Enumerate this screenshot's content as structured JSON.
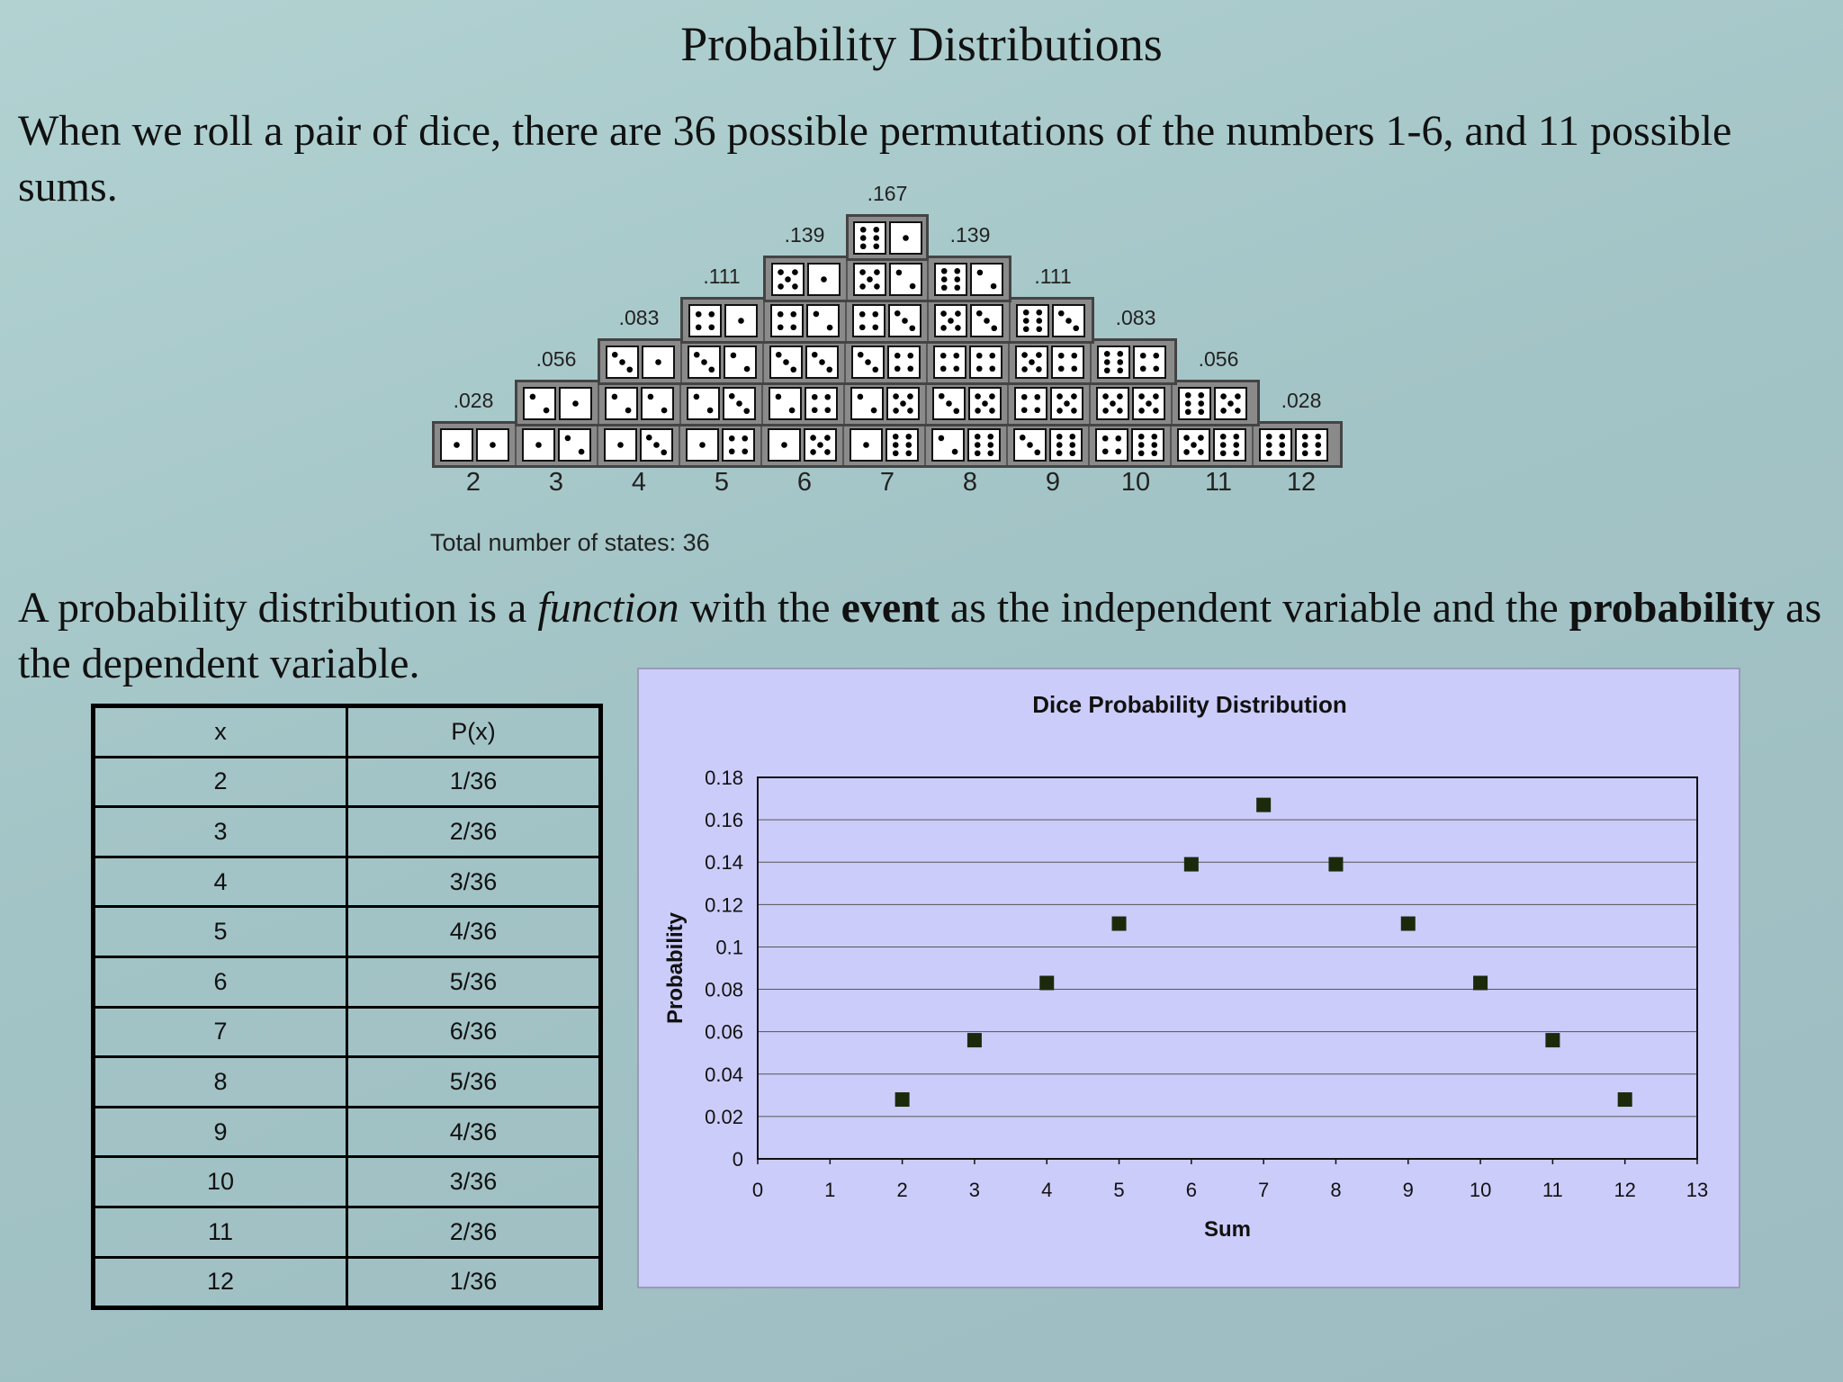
{
  "slide": {
    "title": "Probability Distributions",
    "paragraph1": "When we roll a pair of dice, there are 36 possible permutations of the numbers 1-6, and 11 possible sums.",
    "paragraph2": {
      "part1": "A probability distribution is a ",
      "italic": "function",
      "part2": " with the ",
      "bold1": "event",
      "part3": " as the independent variable and the ",
      "bold2": "probability",
      "part4": " as the dependent variable."
    }
  },
  "dice_figure": {
    "probability_labels": [
      ".028",
      ".056",
      ".083",
      ".111",
      ".139",
      ".167",
      ".139",
      ".111",
      ".083",
      ".056",
      ".028"
    ],
    "sums": [
      "2",
      "3",
      "4",
      "5",
      "6",
      "7",
      "8",
      "9",
      "10",
      "11",
      "12"
    ],
    "total_label": "Total number of states: 36"
  },
  "table": {
    "headers": [
      "x",
      "P(x)"
    ],
    "rows": [
      [
        "2",
        "1/36"
      ],
      [
        "3",
        "2/36"
      ],
      [
        "4",
        "3/36"
      ],
      [
        "5",
        "4/36"
      ],
      [
        "6",
        "5/36"
      ],
      [
        "7",
        "6/36"
      ],
      [
        "8",
        "5/36"
      ],
      [
        "9",
        "4/36"
      ],
      [
        "10",
        "3/36"
      ],
      [
        "11",
        "2/36"
      ],
      [
        "12",
        "1/36"
      ]
    ]
  },
  "chart_data": {
    "type": "scatter",
    "title": "Dice Probability Distribution",
    "xlabel": "Sum",
    "ylabel": "Probability",
    "xlim": [
      0,
      13
    ],
    "ylim": [
      0,
      0.18
    ],
    "x_ticks": [
      "0",
      "1",
      "2",
      "3",
      "4",
      "5",
      "6",
      "7",
      "8",
      "9",
      "10",
      "11",
      "12",
      "13"
    ],
    "y_ticks": [
      "0",
      "0.02",
      "0.04",
      "0.06",
      "0.08",
      "0.1",
      "0.12",
      "0.14",
      "0.16",
      "0.18"
    ],
    "grid": "horizontal",
    "legend": "none",
    "marker_color": "#1c2a0c",
    "background_color": "#ccccfa",
    "x": [
      2,
      3,
      4,
      5,
      6,
      7,
      8,
      9,
      10,
      11,
      12
    ],
    "y": [
      0.028,
      0.056,
      0.083,
      0.111,
      0.139,
      0.167,
      0.139,
      0.111,
      0.083,
      0.056,
      0.028
    ]
  }
}
